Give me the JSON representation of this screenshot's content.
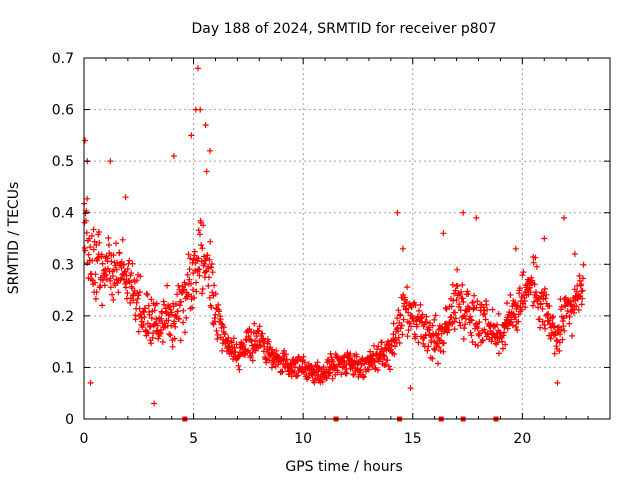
{
  "chart_data": {
    "type": "scatter",
    "title": "Day 188 of 2024, SRMTID for receiver p807",
    "xlabel": "GPS time / hours",
    "ylabel": "SRMTID / TECUs",
    "xlim": [
      0,
      24
    ],
    "ylim": [
      0,
      0.7
    ],
    "x_ticks": [
      0,
      5,
      10,
      15,
      20
    ],
    "x_tick_labels": [
      "0",
      "5",
      "10",
      "15",
      "20"
    ],
    "y_ticks": [
      0,
      0.1,
      0.2,
      0.3,
      0.4,
      0.5,
      0.6,
      0.7
    ],
    "y_tick_labels": [
      "0",
      "0.1",
      "0.2",
      "0.3",
      "0.4",
      "0.5",
      "0.6",
      "0.7"
    ],
    "grid": true,
    "marker": "+",
    "colors": {
      "series": "#ff0000",
      "grid": "#a0a0a0",
      "axis": "#000000"
    },
    "trend": {
      "x": [
        0,
        0.2,
        0.5,
        0.8,
        1.0,
        1.5,
        2.0,
        2.5,
        3.0,
        3.5,
        4.0,
        4.5,
        5.0,
        5.3,
        5.6,
        6.0,
        6.5,
        7.0,
        7.5,
        8.0,
        8.5,
        9.0,
        9.5,
        10.0,
        10.5,
        11.0,
        11.5,
        12.0,
        12.5,
        13.0,
        13.5,
        14.0,
        14.5,
        15.0,
        15.5,
        16.0,
        16.5,
        17.0,
        17.5,
        18.0,
        18.5,
        19.0,
        19.5,
        20.0,
        20.5,
        21.0,
        21.5,
        22.0,
        22.5,
        22.8
      ],
      "y": [
        0.38,
        0.35,
        0.3,
        0.29,
        0.3,
        0.28,
        0.27,
        0.22,
        0.18,
        0.19,
        0.2,
        0.23,
        0.29,
        0.33,
        0.3,
        0.22,
        0.15,
        0.12,
        0.14,
        0.16,
        0.12,
        0.11,
        0.1,
        0.1,
        0.09,
        0.09,
        0.11,
        0.11,
        0.1,
        0.11,
        0.12,
        0.13,
        0.2,
        0.19,
        0.17,
        0.15,
        0.17,
        0.23,
        0.21,
        0.2,
        0.18,
        0.16,
        0.2,
        0.24,
        0.26,
        0.22,
        0.15,
        0.2,
        0.23,
        0.27
      ],
      "spread": [
        0.09,
        0.09,
        0.08,
        0.08,
        0.07,
        0.07,
        0.07,
        0.06,
        0.06,
        0.06,
        0.07,
        0.08,
        0.1,
        0.1,
        0.1,
        0.07,
        0.03,
        0.03,
        0.04,
        0.04,
        0.03,
        0.025,
        0.025,
        0.025,
        0.025,
        0.025,
        0.03,
        0.03,
        0.03,
        0.03,
        0.035,
        0.04,
        0.06,
        0.05,
        0.05,
        0.05,
        0.06,
        0.07,
        0.06,
        0.06,
        0.05,
        0.05,
        0.05,
        0.06,
        0.06,
        0.07,
        0.05,
        0.06,
        0.05,
        0.05
      ]
    },
    "outliers": [
      {
        "x": 0.05,
        "y": 0.54
      },
      {
        "x": 0.15,
        "y": 0.5
      },
      {
        "x": 0.3,
        "y": 0.07
      },
      {
        "x": 1.2,
        "y": 0.5
      },
      {
        "x": 1.9,
        "y": 0.43
      },
      {
        "x": 3.2,
        "y": 0.03
      },
      {
        "x": 4.1,
        "y": 0.51
      },
      {
        "x": 4.9,
        "y": 0.55
      },
      {
        "x": 5.1,
        "y": 0.6
      },
      {
        "x": 5.2,
        "y": 0.68
      },
      {
        "x": 5.3,
        "y": 0.6
      },
      {
        "x": 5.55,
        "y": 0.57
      },
      {
        "x": 5.75,
        "y": 0.52
      },
      {
        "x": 5.6,
        "y": 0.48
      },
      {
        "x": 14.3,
        "y": 0.4
      },
      {
        "x": 14.55,
        "y": 0.33
      },
      {
        "x": 16.4,
        "y": 0.36
      },
      {
        "x": 17.3,
        "y": 0.4
      },
      {
        "x": 17.9,
        "y": 0.39
      },
      {
        "x": 19.7,
        "y": 0.33
      },
      {
        "x": 21.0,
        "y": 0.35
      },
      {
        "x": 21.9,
        "y": 0.39
      },
      {
        "x": 22.4,
        "y": 0.32
      },
      {
        "x": 21.6,
        "y": 0.07
      },
      {
        "x": 14.9,
        "y": 0.06
      }
    ],
    "zero_markers_x": [
      4.6,
      11.5,
      14.4,
      16.3,
      17.3,
      18.8
    ]
  }
}
